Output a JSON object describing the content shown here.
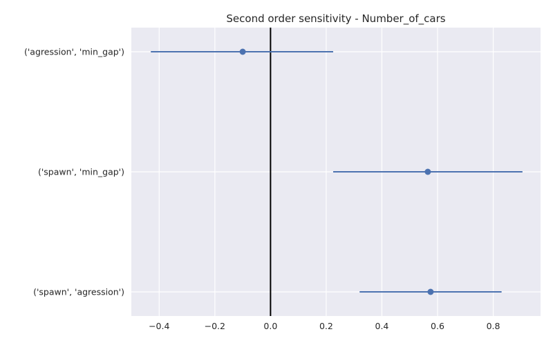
{
  "chart_data": {
    "type": "errorbar",
    "title": "Second order sensitivity  -  Number_of_cars",
    "xlabel": "",
    "ylabel": "",
    "xlim": [
      -0.5,
      0.97
    ],
    "xticks": [
      -0.4,
      -0.2,
      0.0,
      0.2,
      0.4,
      0.6,
      0.8
    ],
    "xtick_labels": [
      "−0.4",
      "−0.2",
      "0.0",
      "0.2",
      "0.4",
      "0.6",
      "0.8"
    ],
    "categories": [
      "('agression', 'min_gap')",
      "('spawn', 'min_gap')",
      "('spawn', 'agression')"
    ],
    "values": [
      -0.1,
      0.565,
      0.575
    ],
    "err_low": [
      -0.43,
      0.225,
      0.32
    ],
    "err_high": [
      0.225,
      0.905,
      0.83
    ],
    "reference_line_x": 0.0,
    "grid": true,
    "colors": {
      "background": "#eaeaf2",
      "grid": "#ffffff",
      "series": "#4c72b0",
      "reference": "#000000"
    }
  }
}
